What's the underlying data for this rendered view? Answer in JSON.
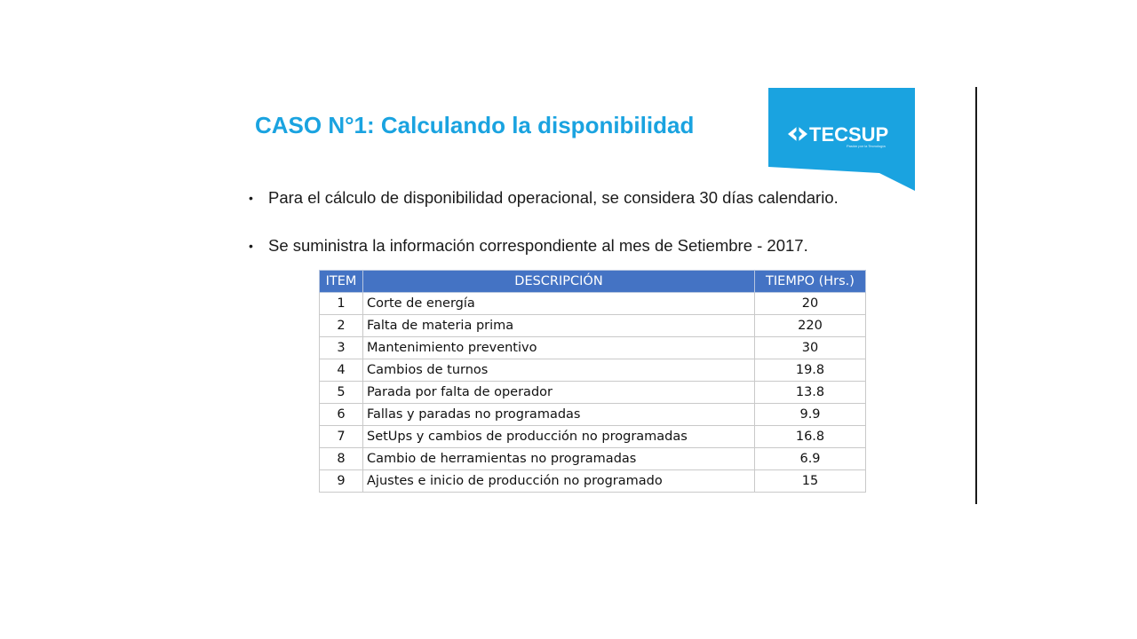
{
  "slide": {
    "title": "CASO N°1: Calculando la disponibilidad",
    "logo": {
      "brand": "TECSUP",
      "tagline": "Pasión por la Tecnología",
      "color": "#1aa3e0"
    },
    "bullets": [
      "Para el cálculo de disponibilidad operacional, se considera 30 días calendario.",
      "Se suministra la información correspondiente al mes de Setiembre - 2017."
    ],
    "table": {
      "headers": [
        "ITEM",
        "DESCRIPCIÓN",
        "TIEMPO (Hrs.)"
      ],
      "header_color": "#4473c4",
      "rows": [
        {
          "item": "1",
          "desc": "Corte de energía",
          "time": "20"
        },
        {
          "item": "2",
          "desc": "Falta de materia prima",
          "time": "220"
        },
        {
          "item": "3",
          "desc": "Mantenimiento preventivo",
          "time": "30"
        },
        {
          "item": "4",
          "desc": "Cambios de turnos",
          "time": "19.8"
        },
        {
          "item": "5",
          "desc": "Parada por falta de operador",
          "time": "13.8"
        },
        {
          "item": "6",
          "desc": "Fallas y paradas no programadas",
          "time": "9.9"
        },
        {
          "item": "7",
          "desc": "SetUps y cambios de producción no programadas",
          "time": "16.8"
        },
        {
          "item": "8",
          "desc": "Cambio de herramientas no programadas",
          "time": "6.9"
        },
        {
          "item": "9",
          "desc": "Ajustes e inicio de producción no programado",
          "time": "15"
        }
      ]
    }
  }
}
